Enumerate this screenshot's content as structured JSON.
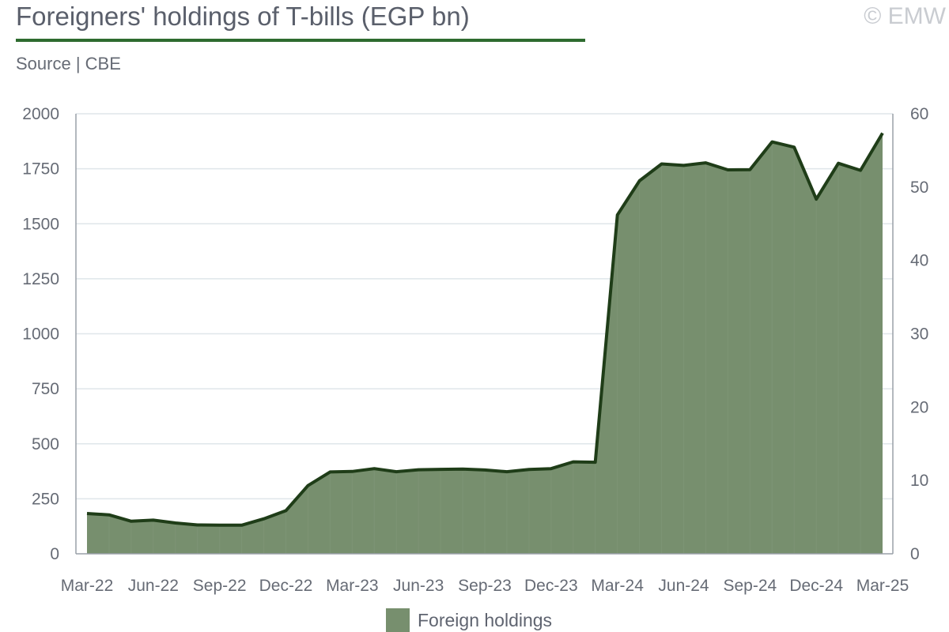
{
  "header": {
    "title": "Foreigners' holdings of T-bills (EGP bn)",
    "source": "Source | CBE",
    "watermark": "© EMW"
  },
  "colors": {
    "accent": "#2e6b2f",
    "area_fill": "#778f6e",
    "line": "#1f3d18",
    "grid": "#dfe6ea",
    "axis": "#9aa0a8"
  },
  "legend": {
    "label": "Foreign holdings"
  },
  "chart_data": {
    "type": "area",
    "title": "Foreigners' holdings of T-bills (EGP bn)",
    "xlabel": "",
    "ylabel": "",
    "ylim": [
      0,
      2000
    ],
    "y2lim": [
      0,
      60
    ],
    "y_ticks": [
      "0",
      "250",
      "500",
      "750",
      "1000",
      "1250",
      "1500",
      "1750",
      "2000"
    ],
    "y2_ticks": [
      "0",
      "10",
      "20",
      "30",
      "40",
      "50",
      "60"
    ],
    "grid": true,
    "legend_position": "bottom-center",
    "x_ticks": [
      "Mar-22",
      "Jun-22",
      "Sep-22",
      "Dec-22",
      "Mar-23",
      "Jun-23",
      "Sep-23",
      "Dec-23",
      "Mar-24",
      "Jun-24",
      "Sep-24",
      "Dec-24",
      "Mar-25"
    ],
    "x": [
      "Mar-22",
      "Apr-22",
      "May-22",
      "Jun-22",
      "Jul-22",
      "Aug-22",
      "Sep-22",
      "Oct-22",
      "Nov-22",
      "Dec-22",
      "Jan-23",
      "Feb-23",
      "Mar-23",
      "Apr-23",
      "May-23",
      "Jun-23",
      "Jul-23",
      "Aug-23",
      "Sep-23",
      "Oct-23",
      "Nov-23",
      "Dec-23",
      "Jan-24",
      "Feb-24",
      "Mar-24",
      "Apr-24",
      "May-24",
      "Jun-24",
      "Jul-24",
      "Aug-24",
      "Sep-24",
      "Oct-24",
      "Nov-24",
      "Dec-24",
      "Jan-25",
      "Feb-25",
      "Mar-25"
    ],
    "series": [
      {
        "name": "Foreign holdings",
        "values": [
          183,
          177,
          148,
          153,
          140,
          131,
          130,
          130,
          159,
          196,
          310,
          372,
          374,
          387,
          373,
          382,
          384,
          385,
          381,
          373,
          383,
          387,
          418,
          416,
          1540,
          1695,
          1772,
          1765,
          1777,
          1745,
          1746,
          1872,
          1848,
          1612,
          1775,
          1743,
          1912
        ]
      }
    ]
  }
}
